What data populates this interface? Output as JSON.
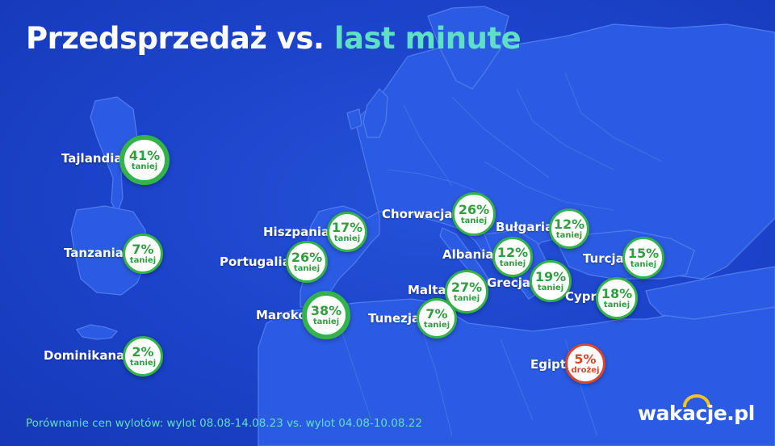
{
  "title": {
    "main": "Przedsprzedaż vs.",
    "accent": "last minute"
  },
  "colors": {
    "background": "#1c45cc",
    "land": "#2c5be3",
    "title_accent": "#5fe0c4",
    "badge_green": "#34b34a",
    "badge_red": "#d8462f"
  },
  "destinations": [
    {
      "name": "Tajlandia",
      "pct": "41%",
      "word": "taniej"
    },
    {
      "name": "Tanzania",
      "pct": "7%",
      "word": "taniej"
    },
    {
      "name": "Dominikana",
      "pct": "2%",
      "word": "taniej"
    },
    {
      "name": "Hiszpania",
      "pct": "17%",
      "word": "taniej"
    },
    {
      "name": "Portugalia",
      "pct": "26%",
      "word": "taniej"
    },
    {
      "name": "Maroko",
      "pct": "38%",
      "word": "taniej"
    },
    {
      "name": "Chorwacja",
      "pct": "26%",
      "word": "taniej"
    },
    {
      "name": "Bułgaria",
      "pct": "12%",
      "word": "taniej"
    },
    {
      "name": "Albania",
      "pct": "12%",
      "word": "taniej"
    },
    {
      "name": "Turcja",
      "pct": "15%",
      "word": "taniej"
    },
    {
      "name": "Grecja",
      "pct": "19%",
      "word": "taniej"
    },
    {
      "name": "Malta",
      "pct": "27%",
      "word": "taniej"
    },
    {
      "name": "Cypr",
      "pct": "18%",
      "word": "taniej"
    },
    {
      "name": "Tunezja",
      "pct": "7%",
      "word": "taniej"
    },
    {
      "name": "Egipt",
      "pct": "5%",
      "word": "drożej"
    }
  ],
  "footnote": "Porównanie cen wylotów: wylot 08.08-14.08.23 vs. wylot 04.08-10.08.22",
  "logo": {
    "text": "wakacje.pl"
  }
}
